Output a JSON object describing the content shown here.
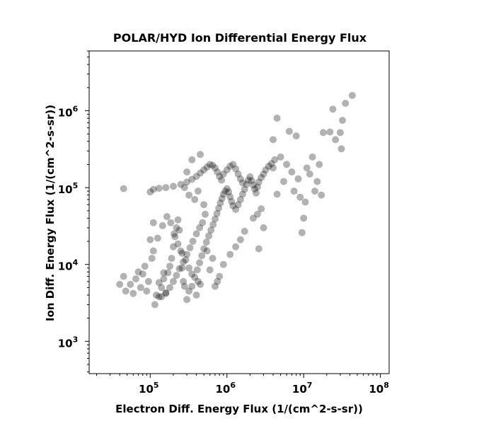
{
  "chart_data": {
    "type": "scatter",
    "title": "POLAR/HYD  Ion Differential Energy Flux",
    "xlabel": "Electron Diff. Energy Flux (1/(cm^2-s-sr))",
    "ylabel": "Ion Diff. Energy Flux (1/(cm^2-s-sr))",
    "x_scale": "log",
    "y_scale": "log",
    "xlim": [
      16000,
      130000000
    ],
    "ylim": [
      380,
      6000000
    ],
    "x_ticks": [
      {
        "base": "10",
        "exp": "5",
        "value": 100000
      },
      {
        "base": "10",
        "exp": "6",
        "value": 1000000
      },
      {
        "base": "10",
        "exp": "7",
        "value": 10000000
      },
      {
        "base": "10",
        "exp": "8",
        "value": 100000000
      }
    ],
    "y_ticks": [
      {
        "base": "10",
        "exp": "3",
        "value": 1000
      },
      {
        "base": "10",
        "exp": "4",
        "value": 10000
      },
      {
        "base": "10",
        "exp": "5",
        "value": 100000
      },
      {
        "base": "10",
        "exp": "6",
        "value": 1000000
      }
    ],
    "marker_color": "#000000",
    "marker_alpha": 0.3,
    "grid": false,
    "series": [
      {
        "points": [
          [
            45000,
            97000
          ],
          [
            40000,
            5500
          ],
          [
            45000,
            7000
          ],
          [
            48000,
            4500
          ],
          [
            55000,
            5500
          ],
          [
            60000,
            4200
          ],
          [
            65000,
            6500
          ],
          [
            70000,
            8000
          ],
          [
            75000,
            5000
          ],
          [
            80000,
            7500
          ],
          [
            85000,
            9500
          ],
          [
            90000,
            4500
          ],
          [
            95000,
            6000
          ],
          [
            100000,
            21000
          ],
          [
            105000,
            12000
          ],
          [
            110000,
            15000
          ],
          [
            115000,
            3000
          ],
          [
            120000,
            4000
          ],
          [
            130000,
            3800
          ],
          [
            140000,
            5000
          ],
          [
            150000,
            6500
          ],
          [
            160000,
            4200
          ],
          [
            170000,
            7800
          ],
          [
            180000,
            9500
          ],
          [
            190000,
            12000
          ],
          [
            200000,
            17000
          ],
          [
            210000,
            23000
          ],
          [
            220000,
            30000
          ],
          [
            230000,
            38000
          ],
          [
            240000,
            28000
          ],
          [
            250000,
            15000
          ],
          [
            260000,
            9000
          ],
          [
            270000,
            6000
          ],
          [
            280000,
            5200
          ],
          [
            300000,
            3500
          ],
          [
            320000,
            4500
          ],
          [
            350000,
            5200
          ],
          [
            380000,
            6800
          ],
          [
            410000,
            8500
          ],
          [
            440000,
            10500
          ],
          [
            470000,
            13000
          ],
          [
            500000,
            16000
          ],
          [
            540000,
            19500
          ],
          [
            580000,
            23500
          ],
          [
            620000,
            28000
          ],
          [
            660000,
            33000
          ],
          [
            700000,
            39000
          ],
          [
            740000,
            46000
          ],
          [
            780000,
            54000
          ],
          [
            820000,
            63000
          ],
          [
            860000,
            72000
          ],
          [
            900000,
            82000
          ],
          [
            950000,
            90000
          ],
          [
            1000000,
            97000
          ],
          [
            1050000,
            88000
          ],
          [
            1100000,
            76000
          ],
          [
            1150000,
            66000
          ],
          [
            1200000,
            58000
          ],
          [
            1300000,
            52000
          ],
          [
            1400000,
            60000
          ],
          [
            1500000,
            70000
          ],
          [
            1600000,
            82000
          ],
          [
            1700000,
            95000
          ],
          [
            1800000,
            110000
          ],
          [
            1900000,
            125000
          ],
          [
            2000000,
            138000
          ],
          [
            2100000,
            123000
          ],
          [
            2200000,
            108000
          ],
          [
            2300000,
            96000
          ],
          [
            2400000,
            85000
          ],
          [
            2500000,
            102000
          ],
          [
            2600000,
            118000
          ],
          [
            2800000,
            135000
          ],
          [
            3000000,
            150000
          ],
          [
            3200000,
            170000
          ],
          [
            3500000,
            190000
          ],
          [
            3800000,
            205000
          ],
          [
            4000000,
            180000
          ],
          [
            4200000,
            230000
          ],
          [
            4500000,
            82000
          ],
          [
            5000000,
            250000
          ],
          [
            5500000,
            120000
          ],
          [
            6000000,
            200000
          ],
          [
            7000000,
            160000
          ],
          [
            7500000,
            90000
          ],
          [
            8000000,
            470000
          ],
          [
            8500000,
            130000
          ],
          [
            9000000,
            75000
          ],
          [
            9500000,
            26000
          ],
          [
            10000000,
            40000
          ],
          [
            10500000,
            65000
          ],
          [
            11000000,
            180000
          ],
          [
            12000000,
            150000
          ],
          [
            13000000,
            250000
          ],
          [
            14000000,
            90000
          ],
          [
            15000000,
            120000
          ],
          [
            16000000,
            200000
          ],
          [
            17000000,
            80000
          ],
          [
            18000000,
            520000
          ],
          [
            22000000,
            530000
          ],
          [
            24000000,
            1050000
          ],
          [
            26000000,
            420000
          ],
          [
            30000000,
            520000
          ],
          [
            31000000,
            320000
          ],
          [
            32000000,
            750000
          ],
          [
            35000000,
            1250000
          ],
          [
            43000000,
            1580000
          ],
          [
            4500000,
            800000
          ],
          [
            6500000,
            540000
          ],
          [
            4000000,
            420000
          ],
          [
            2800000,
            53000
          ],
          [
            2500000,
            45000
          ],
          [
            2200000,
            40000
          ],
          [
            3000000,
            30000
          ],
          [
            2600000,
            16000
          ],
          [
            1700000,
            27000
          ],
          [
            1500000,
            21000
          ],
          [
            1300000,
            17000
          ],
          [
            1100000,
            13500
          ],
          [
            900000,
            10000
          ],
          [
            800000,
            7000
          ],
          [
            700000,
            5200
          ],
          [
            750000,
            6000
          ],
          [
            600000,
            8500
          ],
          [
            650000,
            12000
          ],
          [
            550000,
            15000
          ],
          [
            450000,
            5500
          ],
          [
            400000,
            4000
          ],
          [
            420000,
            6000
          ],
          [
            350000,
            7500
          ],
          [
            320000,
            9000
          ],
          [
            290000,
            11500
          ],
          [
            260000,
            14000
          ],
          [
            230000,
            18500
          ],
          [
            205000,
            25000
          ],
          [
            185000,
            35000
          ],
          [
            165000,
            42000
          ],
          [
            145000,
            32000
          ],
          [
            125000,
            22000
          ],
          [
            110000,
            35000
          ],
          [
            100000,
            88000
          ],
          [
            110000,
            95000
          ],
          [
            130000,
            98000
          ],
          [
            160000,
            100000
          ],
          [
            200000,
            104000
          ],
          [
            250000,
            110000
          ],
          [
            300000,
            118000
          ],
          [
            350000,
            128000
          ],
          [
            400000,
            140000
          ],
          [
            450000,
            155000
          ],
          [
            500000,
            170000
          ],
          [
            550000,
            185000
          ],
          [
            600000,
            200000
          ],
          [
            650000,
            195000
          ],
          [
            700000,
            180000
          ],
          [
            750000,
            160000
          ],
          [
            800000,
            140000
          ],
          [
            850000,
            125000
          ],
          [
            900000,
            150000
          ],
          [
            1000000,
            170000
          ],
          [
            1100000,
            190000
          ],
          [
            1200000,
            200000
          ],
          [
            1300000,
            175000
          ],
          [
            1400000,
            150000
          ],
          [
            1500000,
            130000
          ],
          [
            1600000,
            115000
          ],
          [
            450000,
            270000
          ],
          [
            350000,
            230000
          ],
          [
            300000,
            160000
          ],
          [
            280000,
            100000
          ],
          [
            320000,
            80000
          ],
          [
            380000,
            70000
          ],
          [
            420000,
            90000
          ],
          [
            500000,
            60000
          ],
          [
            520000,
            45000
          ],
          [
            480000,
            35000
          ],
          [
            440000,
            30000
          ],
          [
            400000,
            25000
          ],
          [
            360000,
            20000
          ],
          [
            330000,
            16500
          ],
          [
            300000,
            13500
          ],
          [
            270000,
            10800
          ],
          [
            240000,
            8800
          ],
          [
            220000,
            7200
          ],
          [
            200000,
            6000
          ],
          [
            180000,
            5000
          ],
          [
            160000,
            4300
          ],
          [
            140000,
            3800
          ],
          [
            130000,
            5800
          ],
          [
            150000,
            7800
          ]
        ]
      }
    ]
  }
}
